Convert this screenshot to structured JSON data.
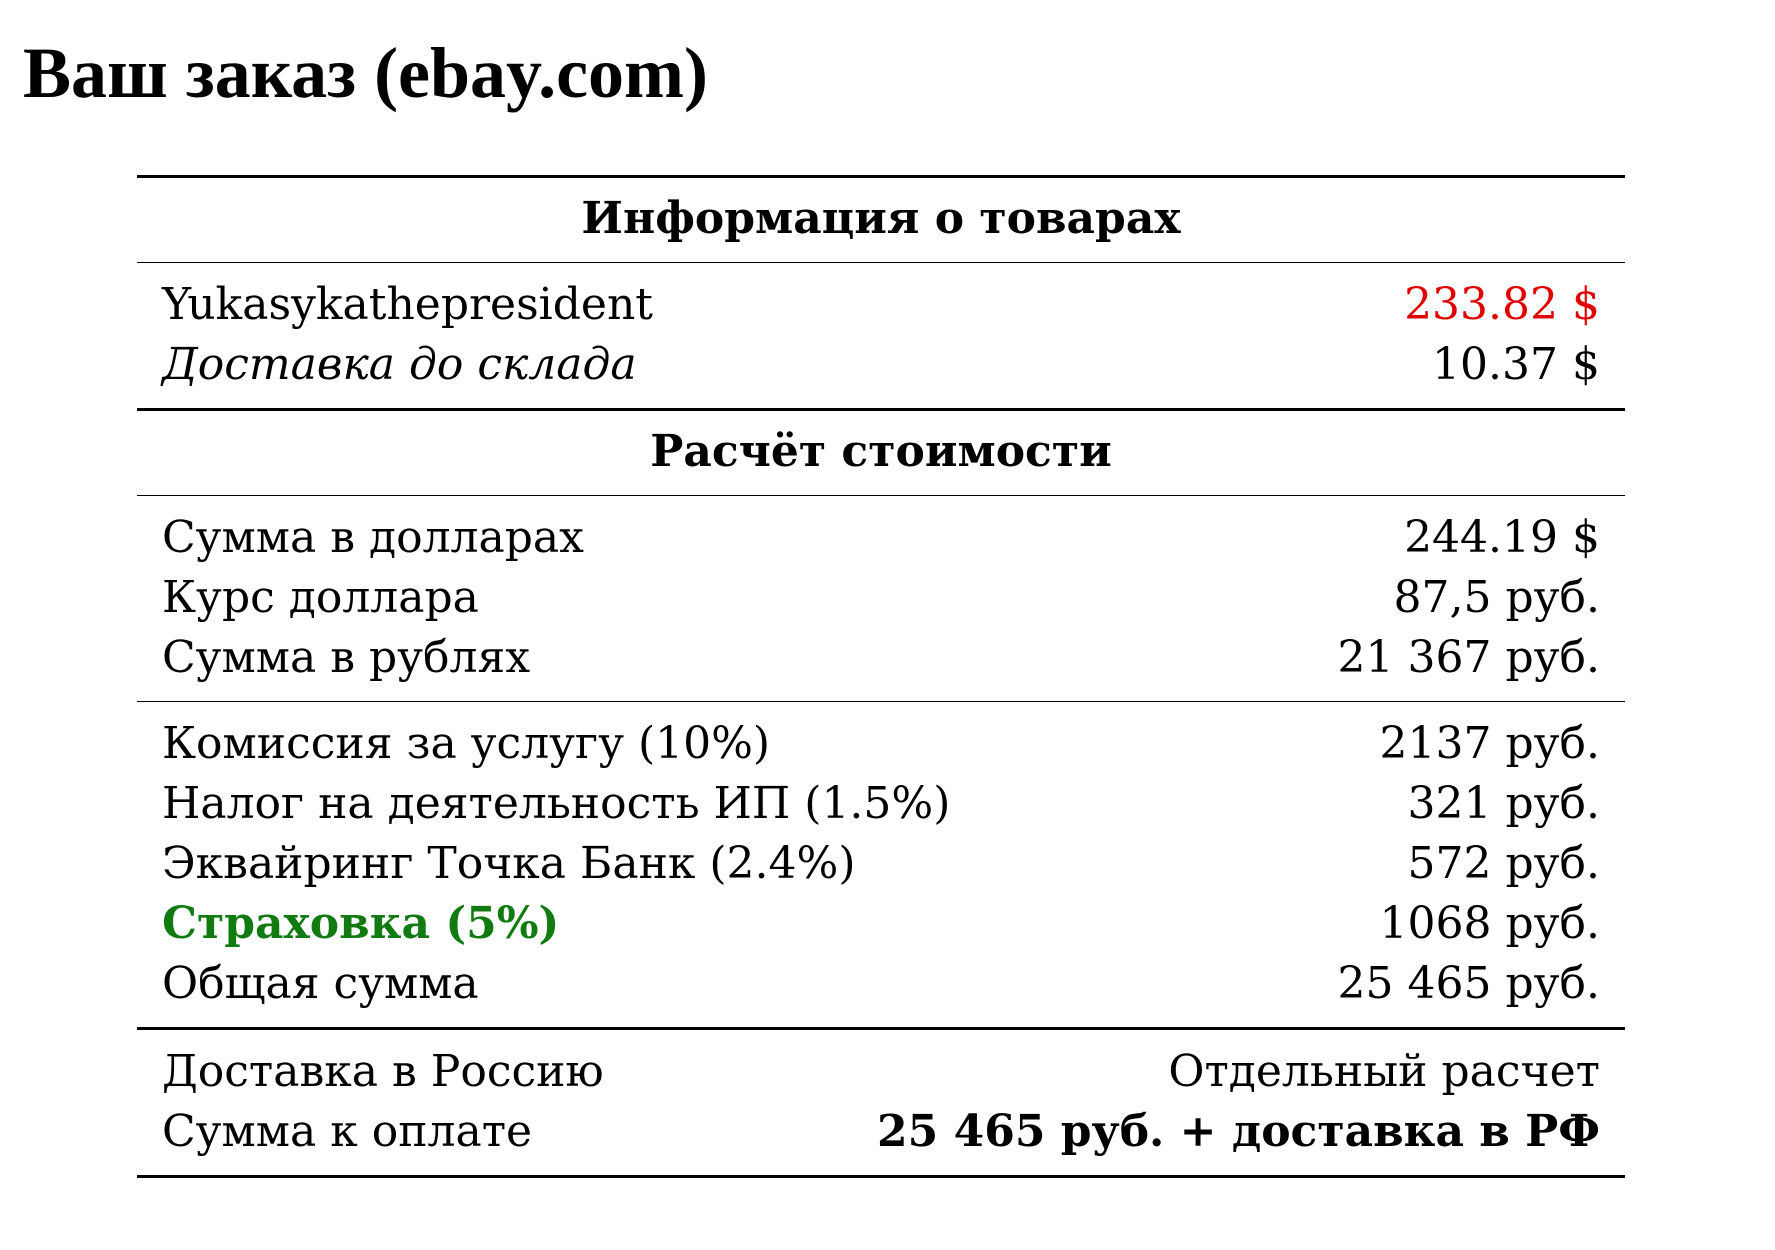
{
  "title": "Ваш заказ (ebay.com)",
  "colors": {
    "highlight_price": "#e00000",
    "insurance": "#117a11"
  },
  "goods": {
    "heading": "Информация о товарах",
    "rows": [
      {
        "label": "Yukasykathepresident",
        "value": "233.82 $"
      },
      {
        "label": "Доставка до склада",
        "value": "10.37 $"
      }
    ]
  },
  "calc": {
    "heading": "Расчёт стоимости",
    "conversion_rows": [
      {
        "label": "Сумма в долларах",
        "value": "244.19 $"
      },
      {
        "label": "Курс доллара",
        "value": "87,5 руб."
      },
      {
        "label": "Сумма в рублях",
        "value": "21 367 руб."
      }
    ],
    "fee_rows": [
      {
        "label": "Комиссия за услугу (10%)",
        "value": "2137 руб."
      },
      {
        "label": "Налог на деятельность ИП (1.5%)",
        "value": "321 руб."
      },
      {
        "label": "Эквайринг Точка Банк (2.4%)",
        "value": "572 руб."
      },
      {
        "label": "Страховка (5%)",
        "value": "1068 руб."
      },
      {
        "label": "Общая сумма",
        "value": "25 465 руб."
      }
    ]
  },
  "final": {
    "rows": [
      {
        "label": "Доставка в Россию",
        "value": "Отдельный расчет"
      },
      {
        "label": "Сумма к оплате",
        "value": "25 465 руб. + доставка в РФ"
      }
    ]
  }
}
